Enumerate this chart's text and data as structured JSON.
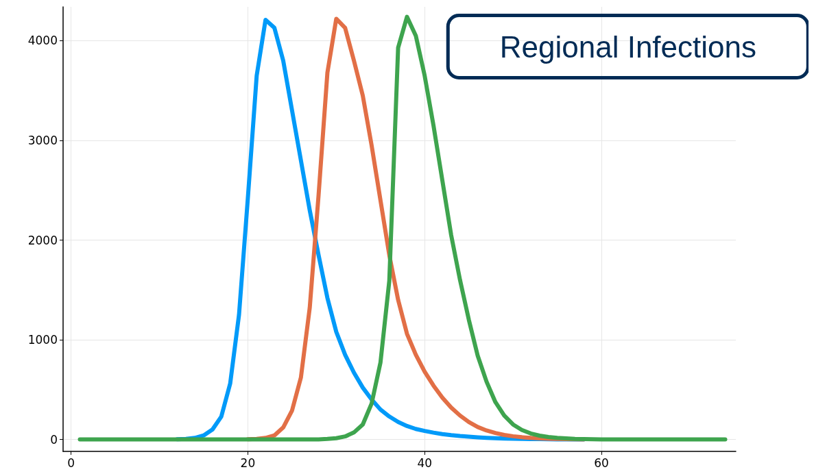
{
  "chart_data": {
    "type": "line",
    "title": "Regional Infections",
    "x": [
      1,
      2,
      3,
      4,
      5,
      6,
      7,
      8,
      9,
      10,
      11,
      12,
      13,
      14,
      15,
      16,
      17,
      18,
      19,
      20,
      21,
      22,
      23,
      24,
      25,
      26,
      27,
      28,
      29,
      30,
      31,
      32,
      33,
      34,
      35,
      36,
      37,
      38,
      39,
      40,
      41,
      42,
      43,
      44,
      45,
      46,
      47,
      48,
      49,
      50,
      51,
      52,
      53,
      54,
      55,
      56,
      57,
      58,
      59,
      60,
      61,
      62,
      63,
      64,
      65,
      66,
      67,
      68,
      69,
      70,
      71,
      72,
      73,
      74
    ],
    "series": [
      {
        "color": "#009af9",
        "values": [
          null,
          null,
          null,
          null,
          null,
          null,
          null,
          null,
          null,
          null,
          null,
          2,
          5,
          15,
          40,
          100,
          230,
          560,
          1250,
          2420,
          3650,
          4210,
          4130,
          3800,
          3300,
          2800,
          2300,
          1850,
          1420,
          1080,
          850,
          670,
          520,
          400,
          300,
          230,
          175,
          135,
          105,
          85,
          68,
          54,
          43,
          34,
          27,
          21,
          16,
          12,
          9,
          7,
          5,
          4,
          3,
          2,
          1,
          1,
          0,
          0,
          null,
          null,
          null,
          null,
          null,
          null,
          null,
          null,
          null,
          null,
          null,
          null,
          null,
          null,
          null,
          null
        ]
      },
      {
        "color": "#e26f46",
        "values": [
          null,
          null,
          null,
          null,
          null,
          null,
          null,
          null,
          null,
          null,
          null,
          null,
          null,
          null,
          null,
          null,
          null,
          null,
          null,
          2,
          5,
          15,
          40,
          120,
          290,
          620,
          1320,
          2450,
          3680,
          4220,
          4130,
          3800,
          3450,
          2950,
          2400,
          1850,
          1400,
          1060,
          850,
          680,
          540,
          420,
          320,
          240,
          175,
          125,
          90,
          65,
          45,
          32,
          22,
          15,
          10,
          7,
          5,
          3,
          2,
          1,
          null,
          null,
          null,
          null,
          null,
          null,
          null,
          null,
          null,
          null,
          null,
          null,
          null,
          null,
          null,
          null
        ]
      },
      {
        "color": "#3ea44e",
        "values": [
          0,
          0,
          0,
          0,
          0,
          0,
          0,
          0,
          0,
          0,
          0,
          0,
          0,
          0,
          0,
          0,
          0,
          0,
          0,
          0,
          0,
          0,
          0,
          0,
          0,
          0,
          0,
          0,
          5,
          12,
          30,
          70,
          150,
          360,
          770,
          1590,
          3930,
          4240,
          4050,
          3650,
          3150,
          2600,
          2050,
          1600,
          1200,
          840,
          580,
          375,
          240,
          150,
          95,
          60,
          38,
          24,
          15,
          10,
          6,
          4,
          2,
          1,
          0,
          0,
          0,
          0,
          0,
          0,
          0,
          0,
          0,
          0,
          0,
          0,
          0,
          0
        ]
      }
    ],
    "xlim": [
      -0.9,
      75.2
    ],
    "ylim": [
      -120,
      4340
    ],
    "xticks": [
      0,
      20,
      40,
      60
    ],
    "yticks": [
      0,
      1000,
      2000,
      3000,
      4000
    ],
    "grid": true
  }
}
